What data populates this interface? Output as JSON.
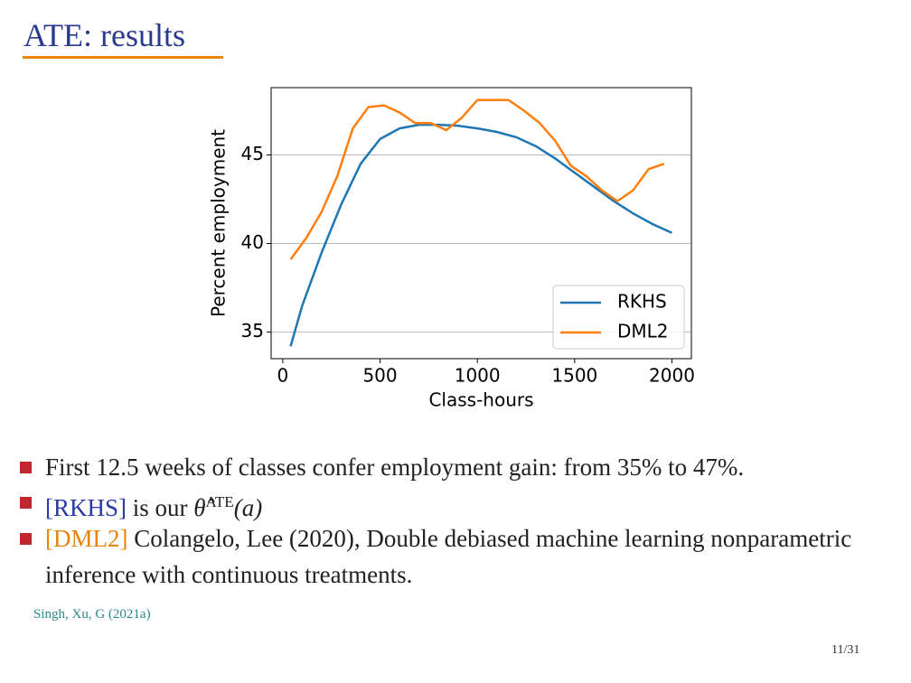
{
  "slide": {
    "title": "ATE: results",
    "bullets": [
      {
        "text": "First 12.5 weeks of classes confer employment gain: from 35% to 47%."
      },
      {
        "tag": "[RKHS]",
        "text": "is our",
        "math": "θ̂",
        "sup": "ATE",
        "arg": "(a)"
      },
      {
        "tag": "[DML2]",
        "text": "Colangelo, Lee (2020), Double debiased machine learning nonparametric inference with continuous treatments."
      }
    ],
    "citation": "Singh, Xu, G (2021a)",
    "page": "11/31"
  },
  "chart_data": {
    "type": "line",
    "x_label": "Class-hours",
    "y_label": "Percent employment",
    "xlim": [
      -60,
      2100
    ],
    "ylim": [
      33.5,
      48.8
    ],
    "xticks": [
      0,
      500,
      1000,
      1500,
      2000
    ],
    "yticks": [
      35,
      40,
      45
    ],
    "grid": true,
    "legend": "lower right",
    "series": [
      {
        "name": "RKHS",
        "color": "#1f77b4",
        "x": [
          40,
          100,
          200,
          300,
          400,
          500,
          600,
          700,
          800,
          900,
          1000,
          1100,
          1200,
          1300,
          1400,
          1500,
          1600,
          1700,
          1800,
          1900,
          2000
        ],
        "values": [
          34.2,
          36.5,
          39.5,
          42.2,
          44.5,
          45.9,
          46.5,
          46.7,
          46.7,
          46.65,
          46.5,
          46.3,
          46.0,
          45.5,
          44.8,
          44.0,
          43.2,
          42.4,
          41.7,
          41.1,
          40.6
        ]
      },
      {
        "name": "DML2",
        "color": "#ff7f0e",
        "x": [
          40,
          120,
          200,
          280,
          360,
          440,
          520,
          600,
          680,
          760,
          840,
          920,
          1000,
          1080,
          1160,
          1240,
          1320,
          1400,
          1480,
          1560,
          1640,
          1720,
          1800,
          1880,
          1960
        ],
        "values": [
          39.1,
          40.3,
          41.8,
          43.8,
          46.5,
          47.7,
          47.8,
          47.4,
          46.8,
          46.8,
          46.4,
          47.1,
          48.1,
          48.1,
          48.1,
          47.5,
          46.8,
          45.8,
          44.4,
          43.8,
          43.0,
          42.4,
          43.0,
          44.2,
          44.5
        ]
      }
    ]
  }
}
